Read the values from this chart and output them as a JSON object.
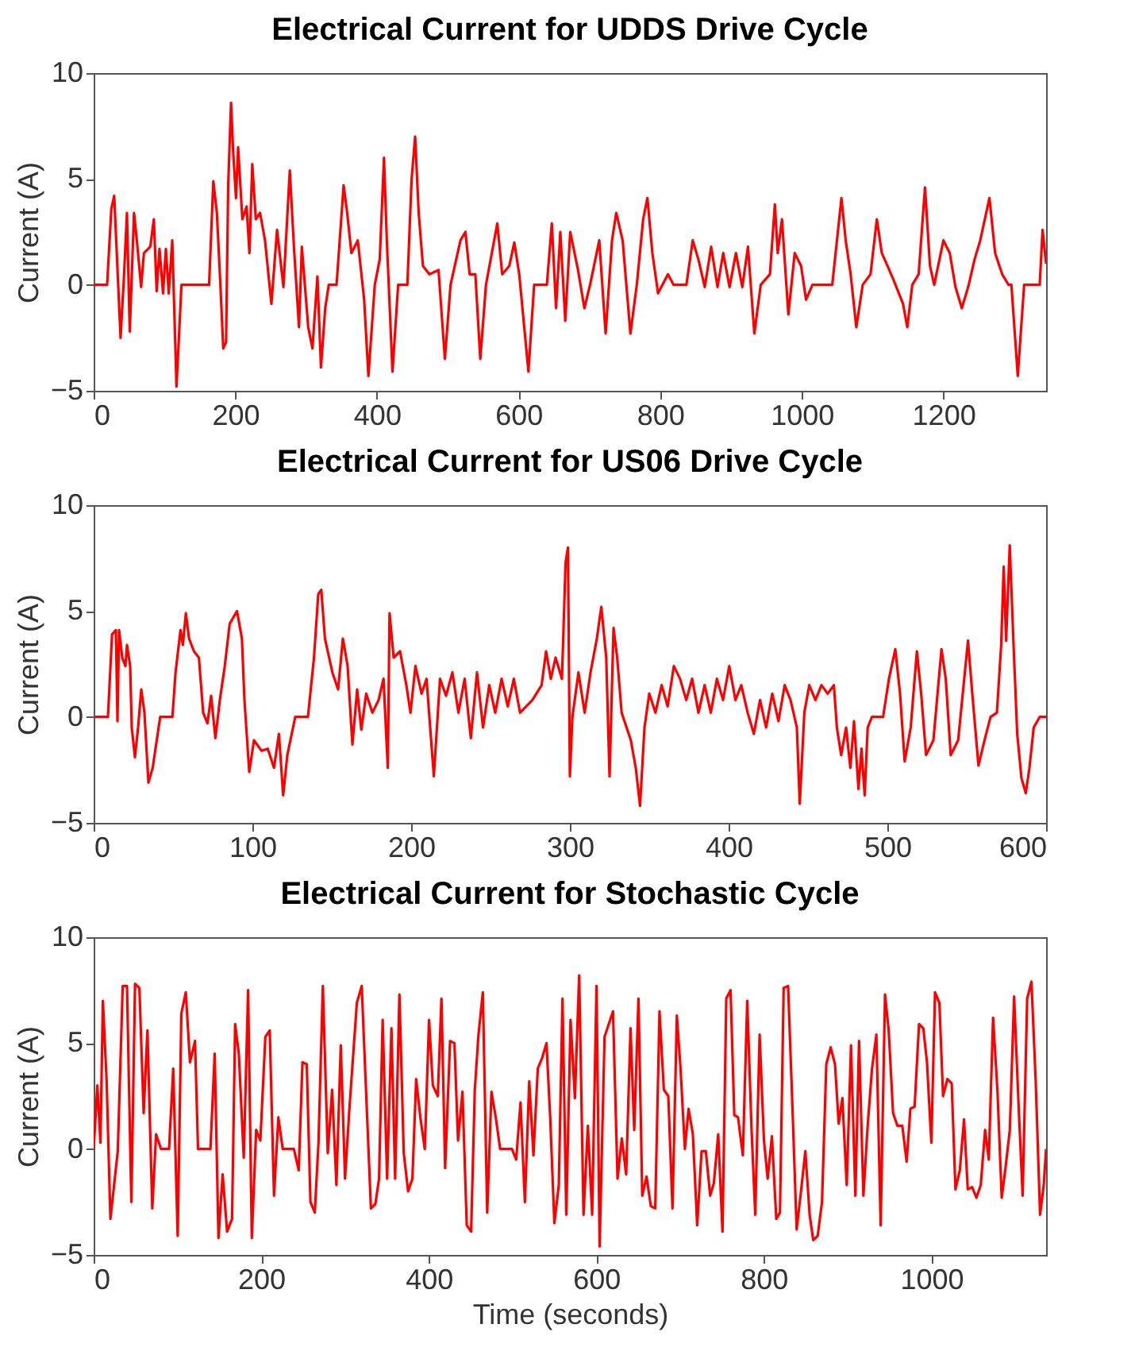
{
  "chart_data": [
    {
      "type": "line",
      "title": "Electrical Current for UDDS Drive Cycle",
      "ylabel": "Current (A)",
      "xlim": [
        0,
        1345
      ],
      "xticks": [
        0,
        200,
        400,
        600,
        800,
        1000,
        1200
      ],
      "ylim": [
        -5,
        10
      ],
      "yticks": [
        -5,
        0,
        5,
        10
      ],
      "series": [
        {
          "color": "#ff0000",
          "x": [
            0,
            19,
            25,
            29,
            34,
            38,
            43,
            47,
            51,
            57,
            61,
            67,
            71,
            80,
            85,
            89,
            93,
            98,
            102,
            106,
            111,
            117,
            124,
            163,
            169,
            174,
            179,
            183,
            187,
            190,
            194,
            197,
            201,
            204,
            210,
            216,
            220,
            224,
            229,
            235,
            242,
            251,
            259,
            268,
            277,
            283,
            290,
            294,
            303,
            309,
            316,
            321,
            327,
            332,
            343,
            353,
            358,
            364,
            373,
            382,
            388,
            397,
            404,
            410,
            414,
            422,
            430,
            443,
            449,
            454,
            459,
            465,
            474,
            487,
            496,
            504,
            518,
            525,
            531,
            539,
            546,
            554,
            570,
            577,
            587,
            594,
            601,
            614,
            622,
            640,
            647,
            653,
            659,
            666,
            673,
            684,
            693,
            701,
            714,
            723,
            732,
            738,
            747,
            758,
            767,
            776,
            782,
            789,
            797,
            811,
            819,
            837,
            846,
            854,
            863,
            872,
            881,
            889,
            898,
            907,
            916,
            924,
            933,
            942,
            955,
            962,
            966,
            972,
            981,
            990,
            999,
            1006,
            1015,
            1043,
            1056,
            1062,
            1069,
            1077,
            1086,
            1097,
            1106,
            1113,
            1121,
            1130,
            1143,
            1149,
            1156,
            1165,
            1174,
            1181,
            1187,
            1200,
            1209,
            1217,
            1226,
            1235,
            1244,
            1252,
            1265,
            1273,
            1283,
            1292,
            1296,
            1305,
            1314,
            1336,
            1340,
            1345
          ],
          "values": [
            0,
            0,
            3.6,
            4.2,
            0.5,
            -2.5,
            0.5,
            3.4,
            -2.2,
            3.4,
            2.1,
            -0.1,
            1.5,
            1.8,
            3.1,
            -0.3,
            1.7,
            -0.4,
            1.7,
            -0.4,
            2.1,
            -4.8,
            0,
            0,
            4.9,
            3.4,
            0,
            -3.0,
            -2.7,
            4.7,
            8.6,
            6.3,
            4.1,
            6.5,
            3.1,
            3.7,
            1.5,
            5.7,
            3.1,
            3.4,
            2.1,
            -0.9,
            2.6,
            -0.1,
            5.4,
            1.7,
            -2.0,
            1.8,
            -2.0,
            -3.0,
            0.4,
            -3.9,
            -1.1,
            0,
            0,
            4.7,
            3.4,
            1.5,
            2.1,
            -0.7,
            -4.3,
            0,
            1.2,
            6.0,
            2.1,
            -4.1,
            0,
            0,
            5.0,
            7.0,
            3.4,
            0.9,
            0.5,
            0.7,
            -3.5,
            0,
            2.1,
            2.5,
            0.5,
            0.5,
            -3.5,
            0,
            2.9,
            0.5,
            0.9,
            2.0,
            0.5,
            -4.1,
            0,
            0,
            2.9,
            -1.1,
            2.5,
            -1.7,
            2.5,
            0.7,
            -1.1,
            0,
            2.1,
            -2.3,
            2.1,
            3.4,
            2.1,
            -2.3,
            0,
            3.1,
            4.1,
            1.5,
            -0.4,
            0.5,
            0,
            0,
            2.1,
            1.2,
            -0.1,
            1.8,
            -0.1,
            1.5,
            -0.1,
            1.5,
            -0.1,
            1.8,
            -2.3,
            0,
            0.5,
            3.8,
            1.5,
            3.1,
            -1.4,
            1.5,
            0.9,
            -0.7,
            0,
            0,
            4.1,
            2.1,
            0.5,
            -2.0,
            0,
            0.5,
            3.1,
            1.5,
            0.9,
            0.2,
            -0.9,
            -2.0,
            0,
            0.5,
            4.6,
            0.9,
            0,
            2.1,
            1.5,
            -0.1,
            -1.1,
            -0.1,
            1.2,
            2.1,
            4.1,
            1.5,
            0.5,
            0,
            0,
            -4.3,
            0,
            0,
            2.6,
            1.0
          ]
        }
      ]
    },
    {
      "type": "line",
      "title": "Electrical Current for US06 Drive Cycle",
      "ylabel": "Current (A)",
      "xlim": [
        0,
        600
      ],
      "xticks": [
        0,
        100,
        200,
        300,
        400,
        500,
        600
      ],
      "ylim": [
        -5,
        10
      ],
      "yticks": [
        -5,
        0,
        5,
        10
      ],
      "series": [
        {
          "color": "#ff0000",
          "x": [
            1,
            9,
            11.6,
            14,
            15,
            16,
            18,
            20,
            21,
            23,
            24,
            26,
            28,
            30,
            32,
            34.5,
            37.2,
            41.9,
            49.6,
            51.6,
            54.7,
            56.2,
            58.1,
            60.1,
            63.2,
            66.3,
            69,
            71.7,
            74,
            76.7,
            79.5,
            82.6,
            85.7,
            90.3,
            93.4,
            95,
            98,
            101,
            105.8,
            109.7,
            113.6,
            116.7,
            119.4,
            122,
            127,
            135,
            138.8,
            141.5,
            143.4,
            145.7,
            150.4,
            154,
            157,
            160,
            163,
            166,
            168.6,
            171.7,
            175.6,
            179.5,
            182.6,
            185.3,
            186.4,
            189,
            193,
            197,
            199.6,
            202.7,
            206.6,
            209.7,
            214.3,
            218.2,
            222,
            226,
            229.8,
            233.7,
            237.6,
            241.5,
            245.3,
            249.2,
            253,
            257,
            260.9,
            264.7,
            268.6,
            272.5,
            276.4,
            282.2,
            285,
            288,
            291,
            295,
            297.3,
            298.8,
            300,
            301.6,
            305.4,
            309.3,
            313,
            317,
            319.8,
            322.9,
            325,
            327.5,
            329.8,
            332.6,
            338.4,
            341.5,
            344.2,
            347,
            350,
            353.9,
            357.8,
            361.6,
            365.5,
            369.4,
            373.3,
            377,
            381,
            384.9,
            388.8,
            392.6,
            396.5,
            400.4,
            404.3,
            408,
            412,
            415.9,
            419.8,
            423.6,
            427.5,
            431.4,
            435.3,
            439,
            443,
            444.8,
            447.7,
            450.8,
            454.7,
            458.5,
            462.4,
            466.3,
            468.2,
            470.9,
            474,
            476.7,
            479,
            481.8,
            483.7,
            485.7,
            487.6,
            490.3,
            497.3,
            501,
            505,
            508,
            510.9,
            514.7,
            518.6,
            521.3,
            524.4,
            529,
            534.1,
            536.8,
            539.9,
            544.6,
            550.8,
            553.5,
            557.4,
            561.2,
            565,
            569,
            571.7,
            573.3,
            574.8,
            577.1,
            579.5,
            581.8,
            584.5,
            587.2,
            589.5,
            592.2,
            596,
            600
          ],
          "values": [
            0,
            0,
            3.9,
            4.1,
            -0.2,
            4.1,
            2.8,
            2.4,
            3.4,
            2.4,
            -0.5,
            -1.9,
            -0.5,
            1.3,
            0.2,
            -3.1,
            -2.4,
            0,
            0,
            2.1,
            4.1,
            3.4,
            4.9,
            3.7,
            3.1,
            2.8,
            0.2,
            -0.3,
            1.0,
            -1.0,
            0.8,
            2.4,
            4.4,
            5.0,
            3.7,
            0.8,
            -2.6,
            -1.1,
            -1.6,
            -1.5,
            -2.4,
            -0.8,
            -3.7,
            -1.8,
            0,
            0,
            2.8,
            5.8,
            6.0,
            3.7,
            2.1,
            1.3,
            3.7,
            2.4,
            -1.3,
            1.3,
            -0.6,
            1.1,
            0.2,
            0.8,
            1.8,
            -2.4,
            4.9,
            2.8,
            3.1,
            1.5,
            0.2,
            2.4,
            1.1,
            1.8,
            -2.8,
            1.8,
            1.0,
            2.1,
            0.2,
            1.8,
            -1.0,
            2.1,
            -0.5,
            1.5,
            0.2,
            1.8,
            0.5,
            1.8,
            0.2,
            0.5,
            0.8,
            1.5,
            3.1,
            1.8,
            2.8,
            1.8,
            7.3,
            8.0,
            -2.8,
            0,
            2.1,
            0.2,
            2.1,
            3.7,
            5.2,
            2.8,
            -2.8,
            4.2,
            2.8,
            0.2,
            -1.1,
            -2.4,
            -4.2,
            -0.5,
            1.1,
            0.2,
            1.5,
            0.5,
            2.4,
            1.8,
            0.8,
            1.8,
            0.2,
            1.5,
            0.2,
            1.8,
            0.8,
            2.4,
            0.8,
            1.5,
            0.2,
            -0.8,
            0.8,
            -0.5,
            1.1,
            -0.2,
            1.5,
            0.8,
            -0.5,
            -4.1,
            0.2,
            1.5,
            0.8,
            1.5,
            1.1,
            1.5,
            -0.5,
            -1.8,
            -0.5,
            -2.4,
            -0.2,
            -3.4,
            -1.5,
            -3.7,
            -0.5,
            0,
            0,
            1.8,
            3.2,
            1.1,
            -2.1,
            -0.5,
            3.1,
            1.1,
            -1.8,
            -1.1,
            3.2,
            1.8,
            -1.8,
            -1.1,
            3.6,
            1.1,
            -2.3,
            -1.1,
            0,
            0.2,
            3.4,
            7.1,
            3.6,
            8.1,
            3.4,
            -0.8,
            -2.9,
            -3.6,
            -2.4,
            -0.5,
            0,
            0
          ]
        }
      ]
    },
    {
      "type": "line",
      "title": "Electrical Current for Stochastic Cycle",
      "xlabel": "Time (seconds)",
      "ylabel": "Current (A)",
      "xlim": [
        0,
        1137
      ],
      "xticks": [
        0,
        200,
        400,
        600,
        800,
        1000
      ],
      "ylim": [
        -5,
        10
      ],
      "yticks": [
        -5,
        0,
        5,
        10
      ],
      "series": [
        {
          "color": "#ff0000",
          "x": [
            0,
            4.4,
            8.1,
            11,
            15.5,
            20,
            28.8,
            34.7,
            39.8,
            45,
            49.4,
            54.6,
            59.7,
            64.2,
            70,
            74.5,
            80.4,
            90,
            95,
            100.3,
            104.7,
            110,
            115,
            121,
            124.6,
            139.4,
            144.5,
            149,
            154,
            159.3,
            165.2,
            168.9,
            173.3,
            179.2,
            184.4,
            188.8,
            194,
            199,
            205,
            210.2,
            215.3,
            220.5,
            225.7,
            239,
            244.8,
            249.3,
            254.4,
            258.8,
            264,
            268.4,
            273.6,
            279.5,
            284.7,
            289.8,
            295,
            300.1,
            305.3,
            314.2,
            320,
            331,
            336.3,
            340.7,
            345,
            350.3,
            355.5,
            359.9,
            365,
            370.2,
            375.4,
            380.5,
            385,
            390,
            395.3,
            400.4,
            404.9,
            410.8,
            415.2,
            419.6,
            425.5,
            430.7,
            435,
            440.3,
            445.4,
            450.6,
            455,
            459.4,
            464.6,
            469.8,
            474.9,
            480,
            485.3,
            499.3,
            504.4,
            509.6,
            514.8,
            520,
            525,
            530.2,
            535.4,
            540.6,
            545,
            550,
            555.3,
            559.7,
            564.2,
            569.3,
            574.5,
            579.6,
            584.8,
            590,
            595.1,
            600.3,
            604,
            609.9,
            615,
            620,
            625.4,
            630.5,
            635.7,
            640.9,
            645.3,
            650.4,
            654.9,
            660,
            665.2,
            670.4,
            675.5,
            680.7,
            686,
            691,
            696.2,
            700.6,
            705.8,
            710.2,
            715.3,
            720.5,
            725.7,
            730.8,
            736,
            740.4,
            745.6,
            750.7,
            755.2,
            760.3,
            764.8,
            769.2,
            775,
            780.2,
            785.4,
            789.8,
            795,
            800.2,
            804.6,
            809.7,
            814.9,
            819.3,
            823.7,
            829,
            834,
            839.2,
            844.4,
            849.6,
            854.7,
            859,
            864.3,
            869.5,
            874.6,
            879.8,
            885,
            889.4,
            893.8,
            899,
            904.1,
            909.3,
            913.7,
            918.9,
            924,
            929.2,
            934.4,
            939.5,
            944.7,
            949.1,
            954.3,
            959.4,
            965.3,
            970.5,
            975,
            980,
            985.3,
            990.4,
            994.8,
            1000,
            1004.4,
            1009.6,
            1014,
            1019.2,
            1024.3,
            1028.8,
            1034,
            1039,
            1043.5,
            1048.7,
            1053.8,
            1059,
            1064.2,
            1068.6,
            1073.7,
            1079,
            1084,
            1088.5,
            1093.7,
            1098.8,
            1104,
            1109,
            1114.4,
            1119.5,
            1124.6,
            1129.8,
            1134.2,
            1137
          ],
          "values": [
            0,
            3.0,
            0.3,
            7.0,
            3.2,
            -3.3,
            -0.1,
            7.7,
            7.7,
            -2.5,
            7.8,
            7.6,
            1.7,
            5.6,
            -2.8,
            0.7,
            0,
            0,
            3.8,
            -4.1,
            6.4,
            7.4,
            4.1,
            5.1,
            0,
            0,
            4.5,
            -4.2,
            -1.2,
            -3.9,
            -3.3,
            5.9,
            4.5,
            -0.4,
            7.5,
            -4.2,
            0.9,
            0.4,
            5.3,
            5.6,
            -2.2,
            1.5,
            0,
            0,
            -1.0,
            4.1,
            4.0,
            -2.5,
            -3.0,
            0.3,
            7.7,
            -0.2,
            2.8,
            -1.7,
            4.9,
            -1.4,
            1.9,
            6.9,
            7.7,
            -2.8,
            -2.6,
            -1.4,
            6.1,
            -1.4,
            5.7,
            -1.4,
            7.3,
            -0.2,
            -2.0,
            -1.4,
            3.3,
            1.5,
            0,
            6.1,
            3.0,
            2.5,
            7.1,
            -0.9,
            5.1,
            5.0,
            0.4,
            2.7,
            -3.6,
            -3.9,
            2.8,
            5.4,
            7.4,
            -3.0,
            2.7,
            1.5,
            0,
            0,
            -0.5,
            2.2,
            -2.5,
            3.2,
            -0.3,
            3.8,
            4.3,
            5.0,
            1.5,
            -3.5,
            -1.7,
            7.1,
            -3.1,
            6.1,
            2.4,
            8.2,
            -3.1,
            1.1,
            -3.1,
            7.7,
            -4.6,
            5.3,
            5.9,
            6.5,
            -1.4,
            0.5,
            -1.2,
            5.7,
            0.9,
            7.1,
            -2.2,
            -1.3,
            -2.7,
            -2.8,
            6.5,
            2.8,
            2.5,
            -2.8,
            6.3,
            3.8,
            0,
            1.9,
            0.7,
            -3.6,
            -0.1,
            -0.1,
            -2.2,
            -1.6,
            0.7,
            -3.9,
            7.1,
            7.5,
            1.6,
            1.5,
            -0.3,
            7.0,
            0.9,
            -3.1,
            5.4,
            0.4,
            -1.4,
            0.6,
            -3.3,
            -3.0,
            7.6,
            7.7,
            2.2,
            -3.8,
            -2.0,
            -0.1,
            -3.1,
            -4.3,
            -4.1,
            -2.5,
            4.0,
            4.8,
            4.0,
            1.2,
            2.4,
            -1.7,
            4.9,
            -2.2,
            5.1,
            -2.2,
            1.1,
            3.8,
            5.4,
            -3.6,
            7.3,
            5.6,
            1.7,
            1.1,
            1.1,
            -0.6,
            1.9,
            2.0,
            5.9,
            5.7,
            4.1,
            0.3,
            7.4,
            6.9,
            2.5,
            3.3,
            3.1,
            -1.9,
            -1.0,
            1.4,
            -1.9,
            -1.8,
            -2.3,
            -1.7,
            0.9,
            -0.5,
            6.2,
            2.7,
            -2.3,
            -0.9,
            0.9,
            7.2,
            2.2,
            -2.2,
            7.1,
            7.9,
            3.2,
            -3.1,
            -1.7,
            0
          ]
        }
      ]
    }
  ]
}
